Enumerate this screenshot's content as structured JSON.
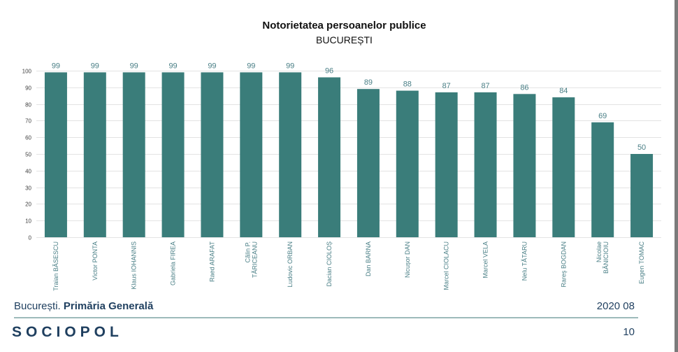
{
  "slide": {
    "footer": {
      "location_prefix": "București.",
      "location_bold": "Primăria Generală",
      "date": "2020 08",
      "logo_text": "SOCIOPOL",
      "page_number": "10"
    }
  },
  "colors": {
    "bar": "#3a7d7a",
    "data_label": "#4a7f86",
    "footer_text": "#1f3f5f",
    "divider": "#9dbaba"
  },
  "chart_data": {
    "type": "bar",
    "title": "Notorietatea persoanelor publice",
    "subtitle": "BUCUREȘTI",
    "xlabel": "",
    "ylabel": "",
    "ylim": [
      0,
      100
    ],
    "yticks": [
      0,
      10,
      20,
      30,
      40,
      50,
      60,
      70,
      80,
      90,
      100
    ],
    "grid": true,
    "legend": "none",
    "categories": [
      [
        "Traian BĂSESCU"
      ],
      [
        "Victor PONTA"
      ],
      [
        "Klaus IOHANNIS"
      ],
      [
        "Gabriela FIREA"
      ],
      [
        "Raed ARAFAT"
      ],
      [
        "Călin P.",
        "TĂRICEANU"
      ],
      [
        "Ludovic ORBAN"
      ],
      [
        "Dacian CIOLOȘ"
      ],
      [
        "Dan BARNA"
      ],
      [
        "Nicușor DAN"
      ],
      [
        "Marcel CIOLACU"
      ],
      [
        "Marcel VELA"
      ],
      [
        "Nelu TĂTARU"
      ],
      [
        "Rareș BOGDAN"
      ],
      [
        "Nicolae",
        "BĂNICIOIU"
      ],
      [
        "Eugen TOMAC"
      ]
    ],
    "values": [
      99,
      99,
      99,
      99,
      99,
      99,
      99,
      96,
      89,
      88,
      87,
      87,
      86,
      84,
      69,
      50
    ],
    "value_labels": [
      "99",
      "99",
      "99",
      "99",
      "99",
      "99",
      "99",
      "96",
      "89",
      "88",
      "87",
      "87",
      "86",
      "84",
      "69",
      "50"
    ]
  }
}
